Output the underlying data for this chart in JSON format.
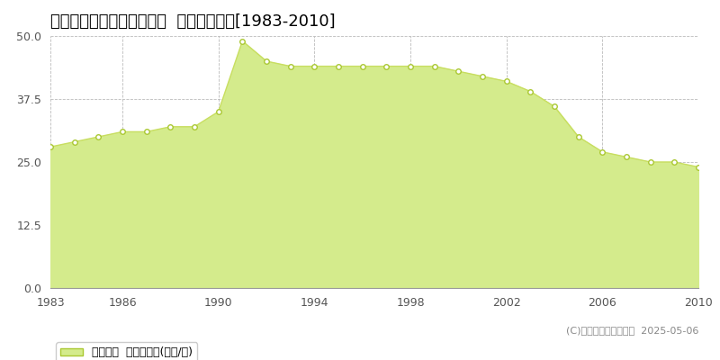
{
  "title": "加古川市別府町新野辺北町  公示地価推移[1983-2010]",
  "years": [
    1983,
    1984,
    1985,
    1986,
    1987,
    1988,
    1989,
    1990,
    1991,
    1992,
    1993,
    1994,
    1995,
    1996,
    1997,
    1998,
    1999,
    2000,
    2001,
    2002,
    2003,
    2004,
    2005,
    2006,
    2007,
    2008,
    2009,
    2010
  ],
  "values": [
    28,
    29,
    30,
    31,
    31,
    32,
    32,
    35,
    49,
    45,
    44,
    44,
    44,
    44,
    44,
    44,
    44,
    43,
    42,
    41,
    39,
    36,
    30,
    27,
    26,
    25,
    25,
    24
  ],
  "fill_color": "#d4eb8c",
  "line_color": "#c8de60",
  "marker_color": "#ffffff",
  "marker_edge_color": "#aac832",
  "bg_color": "#ffffff",
  "plot_bg_color": "#ffffff",
  "grid_color": "#bbbbbb",
  "ylim": [
    0,
    50
  ],
  "yticks": [
    0,
    12.5,
    25,
    37.5,
    50
  ],
  "xlim_min": 1983,
  "xlim_max": 2010,
  "xticks": [
    1983,
    1986,
    1990,
    1994,
    1998,
    2002,
    2006,
    2010
  ],
  "legend_label": "公示地価  平均坪単価(万円/坪)",
  "copyright_text": "(C)土地価格ドットコム  2025-05-06",
  "title_fontsize": 13,
  "axis_fontsize": 9,
  "legend_fontsize": 9
}
